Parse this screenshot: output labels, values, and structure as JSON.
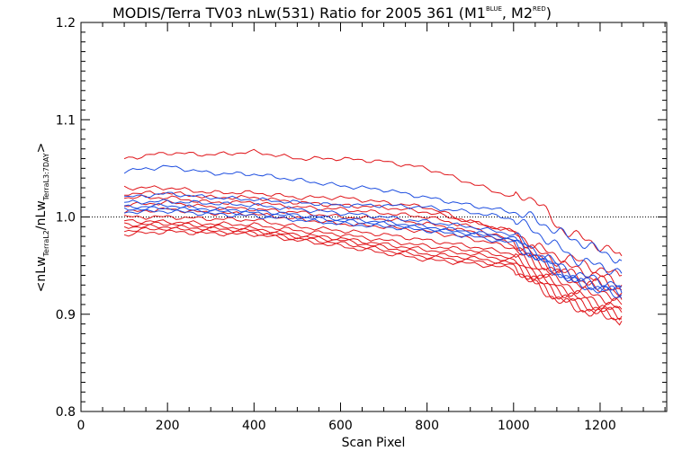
{
  "chart_data": {
    "type": "line",
    "title": {
      "main": "MODIS/Terra TV03 nLw(531) Ratio for 2005 361 (M1",
      "sup1": "BLUE",
      "mid": ", M2",
      "sup2": "RED",
      "end": ")"
    },
    "xlabel": "Scan Pixel",
    "ylabel": {
      "open": "<nLw",
      "sub1": "TerraL2",
      "slash": "/nLw",
      "sub2": "TerraL3:7DAY",
      "close": ">"
    },
    "xlim": [
      0,
      1354
    ],
    "ylim": [
      0.8,
      1.2
    ],
    "x_ticks": [
      0,
      200,
      400,
      600,
      800,
      1000,
      1200
    ],
    "y_ticks": [
      0.8,
      0.9,
      1.0,
      1.1,
      1.2
    ],
    "y_tick_labels": [
      "0.8",
      "0.9",
      "1.0",
      "1.1",
      "1.2"
    ],
    "reference_line": {
      "y": 1.0,
      "style": "dotted"
    },
    "colors": {
      "M1": "#1f4fe0",
      "M2": "#e0161b"
    },
    "x": [
      100,
      200,
      300,
      400,
      500,
      600,
      700,
      800,
      900,
      1000,
      1050,
      1100,
      1150,
      1200,
      1250
    ],
    "series": [
      {
        "name": "M2",
        "values": [
          1.06,
          1.066,
          1.064,
          1.067,
          1.06,
          1.06,
          1.057,
          1.05,
          1.035,
          1.02,
          1.02,
          0.99,
          0.98,
          0.97,
          0.96
        ]
      },
      {
        "name": "M2",
        "values": [
          1.03,
          1.03,
          1.025,
          1.025,
          1.02,
          1.02,
          1.015,
          1.01,
          0.995,
          0.985,
          0.97,
          0.96,
          0.955,
          0.945,
          0.94
        ]
      },
      {
        "name": "M2",
        "values": [
          1.024,
          1.025,
          1.02,
          1.02,
          1.015,
          1.012,
          1.01,
          1.005,
          0.995,
          0.985,
          0.965,
          0.955,
          0.945,
          0.94,
          0.93
        ]
      },
      {
        "name": "M2",
        "values": [
          1.02,
          1.02,
          1.015,
          1.015,
          1.01,
          1.008,
          1.004,
          1.0,
          0.99,
          0.975,
          0.96,
          0.945,
          0.94,
          0.935,
          0.925
        ]
      },
      {
        "name": "M2",
        "values": [
          1.012,
          1.015,
          1.01,
          1.008,
          1.005,
          1.0,
          0.998,
          0.993,
          0.985,
          0.972,
          0.955,
          0.945,
          0.935,
          0.93,
          0.922
        ]
      },
      {
        "name": "M2",
        "values": [
          1.005,
          1.008,
          1.004,
          1.003,
          0.998,
          0.993,
          0.99,
          0.985,
          0.978,
          0.968,
          0.952,
          0.94,
          0.932,
          0.925,
          0.915
        ]
      },
      {
        "name": "M2",
        "values": [
          1.0,
          1.0,
          0.998,
          0.997,
          0.99,
          0.986,
          0.982,
          0.976,
          0.97,
          0.962,
          0.948,
          0.935,
          0.925,
          0.918,
          0.91
        ]
      },
      {
        "name": "M2",
        "values": [
          0.996,
          0.995,
          0.993,
          0.992,
          0.986,
          0.982,
          0.976,
          0.97,
          0.966,
          0.958,
          0.944,
          0.93,
          0.92,
          0.912,
          0.905
        ]
      },
      {
        "name": "M2",
        "values": [
          0.992,
          0.993,
          0.99,
          0.988,
          0.982,
          0.978,
          0.972,
          0.966,
          0.962,
          0.955,
          0.94,
          0.926,
          0.916,
          0.908,
          0.902
        ]
      },
      {
        "name": "M2",
        "values": [
          0.99,
          0.99,
          0.988,
          0.986,
          0.98,
          0.976,
          0.969,
          0.962,
          0.958,
          0.952,
          0.936,
          0.922,
          0.912,
          0.905,
          0.898
        ]
      },
      {
        "name": "M2",
        "values": [
          0.986,
          0.988,
          0.985,
          0.984,
          0.978,
          0.973,
          0.966,
          0.959,
          0.955,
          0.95,
          0.932,
          0.918,
          0.908,
          0.902,
          0.895
        ]
      },
      {
        "name": "M2",
        "values": [
          0.982,
          0.985,
          0.983,
          0.982,
          0.976,
          0.97,
          0.963,
          0.956,
          0.952,
          0.947,
          0.93,
          0.915,
          0.905,
          0.899,
          0.893
        ]
      },
      {
        "name": "M1",
        "values": [
          1.047,
          1.052,
          1.045,
          1.044,
          1.038,
          1.032,
          1.028,
          1.02,
          1.012,
          1.005,
          0.998,
          0.985,
          0.975,
          0.965,
          0.955
        ]
      },
      {
        "name": "M1",
        "values": [
          1.02,
          1.024,
          1.02,
          1.018,
          1.015,
          1.012,
          1.012,
          1.01,
          1.005,
          0.998,
          0.985,
          0.97,
          0.955,
          0.95,
          0.942
        ]
      },
      {
        "name": "M1",
        "values": [
          1.015,
          1.016,
          1.014,
          1.012,
          1.008,
          1.004,
          1.0,
          0.995,
          0.99,
          0.982,
          0.965,
          0.952,
          0.94,
          0.935,
          0.928
        ]
      },
      {
        "name": "M1",
        "values": [
          1.01,
          1.012,
          1.008,
          1.007,
          1.002,
          0.998,
          0.995,
          0.99,
          0.985,
          0.978,
          0.962,
          0.948,
          0.935,
          0.93,
          0.922
        ]
      },
      {
        "name": "M1",
        "values": [
          1.008,
          1.009,
          1.006,
          1.004,
          1.0,
          0.996,
          0.993,
          0.988,
          0.983,
          0.976,
          0.96,
          0.945,
          0.932,
          0.928,
          0.92
        ]
      },
      {
        "name": "M1",
        "values": [
          1.005,
          1.006,
          1.003,
          1.001,
          0.997,
          0.993,
          0.99,
          0.986,
          0.98,
          0.973,
          0.958,
          0.943,
          0.93,
          0.925,
          0.917
        ]
      }
    ]
  }
}
